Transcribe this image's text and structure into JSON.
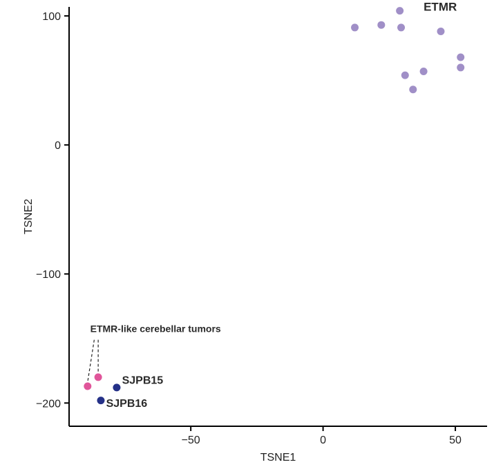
{
  "chart_data": {
    "type": "scatter",
    "title": "",
    "xlabel": "TSNE1",
    "ylabel": "TSNE2",
    "xlim": [
      -96,
      62
    ],
    "ylim": [
      -218,
      107
    ],
    "xticks": [
      {
        "value": -50,
        "label": "−50"
      },
      {
        "value": 0,
        "label": "0"
      },
      {
        "value": 50,
        "label": "50"
      }
    ],
    "yticks": [
      {
        "value": 100,
        "label": "100"
      },
      {
        "value": 0,
        "label": "0"
      },
      {
        "value": -100,
        "label": "−100"
      },
      {
        "value": -200,
        "label": "−200"
      }
    ],
    "grid": false,
    "colors": {
      "etmr": "#a08fc7",
      "etmr_like": "#e0559a",
      "sjpb": "#253188"
    },
    "series": [
      {
        "group": "etmr",
        "points": [
          {
            "x": 29,
            "y": 104
          },
          {
            "x": 12,
            "y": 91
          },
          {
            "x": 22,
            "y": 93
          },
          {
            "x": 29.5,
            "y": 91
          },
          {
            "x": 44.5,
            "y": 88
          },
          {
            "x": 52,
            "y": 68
          },
          {
            "x": 52,
            "y": 60
          },
          {
            "x": 38,
            "y": 57
          },
          {
            "x": 31,
            "y": 54
          },
          {
            "x": 34,
            "y": 43
          }
        ]
      },
      {
        "group": "etmr_like",
        "points": [
          {
            "x": -89,
            "y": -187
          },
          {
            "x": -85,
            "y": -180
          }
        ]
      },
      {
        "group": "sjpb",
        "points": [
          {
            "x": -78,
            "y": -188
          },
          {
            "x": -84,
            "y": -198
          }
        ]
      }
    ],
    "annotations": [
      {
        "text": "ETMR",
        "x": 38,
        "y": 104,
        "size": 17
      },
      {
        "text": "ETMR-like cerebellar tumors",
        "x": -88,
        "y": -145,
        "size": 14
      },
      {
        "text": "SJPB15",
        "x": -76,
        "y": -185,
        "size": 16
      },
      {
        "text": "SJPB16",
        "x": -82,
        "y": -203,
        "size": 16
      }
    ],
    "leader_lines": {
      "apex": [
        {
          "x": -86.5,
          "y": -151
        },
        {
          "x": -85,
          "y": -151
        }
      ],
      "targets": [
        {
          "x": -89,
          "y": -187
        },
        {
          "x": -85,
          "y": -180
        }
      ]
    }
  }
}
